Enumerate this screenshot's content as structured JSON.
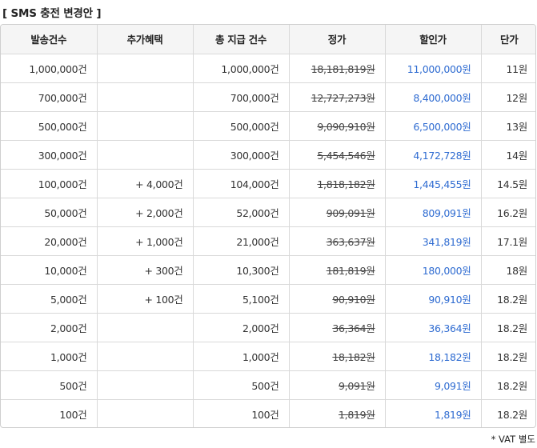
{
  "title": "[ SMS 충전 변경안 ]",
  "headers": [
    "발송건수",
    "추가혜택",
    "총 지급 건수",
    "정가",
    "할인가",
    "단가"
  ],
  "rows": [
    {
      "send": "1,000,000건",
      "bonus": "",
      "total": "1,000,000건",
      "list_price": "18,181,819원",
      "sale_price": "11,000,000원",
      "unit_price": "11원"
    },
    {
      "send": "700,000건",
      "bonus": "",
      "total": "700,000건",
      "list_price": "12,727,273원",
      "sale_price": "8,400,000원",
      "unit_price": "12원"
    },
    {
      "send": "500,000건",
      "bonus": "",
      "total": "500,000건",
      "list_price": "9,090,910원",
      "sale_price": "6,500,000원",
      "unit_price": "13원"
    },
    {
      "send": "300,000건",
      "bonus": "",
      "total": "300,000건",
      "list_price": "5,454,546원",
      "sale_price": "4,172,728원",
      "unit_price": "14원"
    },
    {
      "send": "100,000건",
      "bonus": "+ 4,000건",
      "total": "104,000건",
      "list_price": "1,818,182원",
      "sale_price": "1,445,455원",
      "unit_price": "14.5원"
    },
    {
      "send": "50,000건",
      "bonus": "+ 2,000건",
      "total": "52,000건",
      "list_price": "909,091원",
      "sale_price": "809,091원",
      "unit_price": "16.2원"
    },
    {
      "send": "20,000건",
      "bonus": "+ 1,000건",
      "total": "21,000건",
      "list_price": "363,637원",
      "sale_price": "341,819원",
      "unit_price": "17.1원"
    },
    {
      "send": "10,000건",
      "bonus": "+ 300건",
      "total": "10,300건",
      "list_price": "181,819원",
      "sale_price": "180,000원",
      "unit_price": "18원"
    },
    {
      "send": "5,000건",
      "bonus": "+ 100건",
      "total": "5,100건",
      "list_price": "90,910원",
      "sale_price": "90,910원",
      "unit_price": "18.2원"
    },
    {
      "send": "2,000건",
      "bonus": "",
      "total": "2,000건",
      "list_price": "36,364원",
      "sale_price": "36,364원",
      "unit_price": "18.2원"
    },
    {
      "send": "1,000건",
      "bonus": "",
      "total": "1,000건",
      "list_price": "18,182원",
      "sale_price": "18,182원",
      "unit_price": "18.2원"
    },
    {
      "send": "500건",
      "bonus": "",
      "total": "500건",
      "list_price": "9,091원",
      "sale_price": "9,091원",
      "unit_price": "18.2원"
    },
    {
      "send": "100건",
      "bonus": "",
      "total": "100건",
      "list_price": "1,819원",
      "sale_price": "1,819원",
      "unit_price": "18.2원"
    }
  ],
  "footnote": "* VAT 별도",
  "colors": {
    "header_bg": "#f5f5f5",
    "border": "#d9d9d9",
    "sale_price_text": "#2e6bd1"
  }
}
